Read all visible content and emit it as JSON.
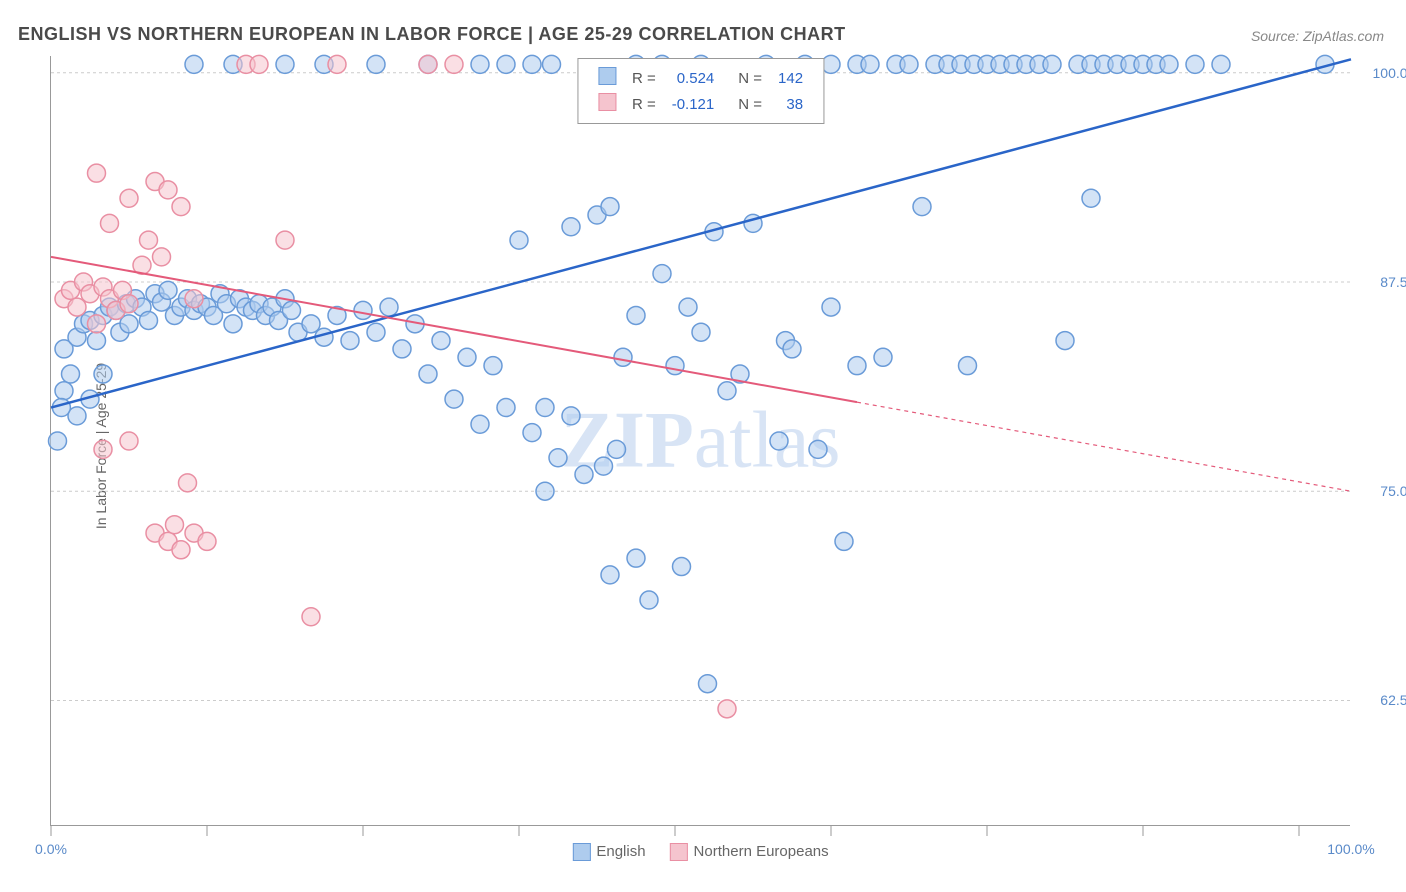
{
  "title": "ENGLISH VS NORTHERN EUROPEAN IN LABOR FORCE | AGE 25-29 CORRELATION CHART",
  "source": "Source: ZipAtlas.com",
  "y_axis_label": "In Labor Force | Age 25-29",
  "watermark": {
    "part1": "ZIP",
    "part2": "atlas"
  },
  "chart": {
    "type": "scatter",
    "xlim": [
      0,
      100
    ],
    "ylim": [
      55,
      101
    ],
    "y_ticks": [
      62.5,
      75.0,
      87.5,
      100.0
    ],
    "y_tick_labels": [
      "62.5%",
      "75.0%",
      "87.5%",
      "100.0%"
    ],
    "x_ticks": [
      0,
      12,
      24,
      36,
      48,
      60,
      72,
      84,
      96
    ],
    "x_tick_labels_show": [
      0,
      100
    ],
    "x_tick_label_values": [
      "0.0%",
      "100.0%"
    ],
    "grid_color": "#cccccc",
    "background_color": "#ffffff",
    "marker_radius": 9,
    "marker_stroke_width": 1.5,
    "series": [
      {
        "name": "English",
        "fill": "#aeccee",
        "fill_opacity": 0.55,
        "stroke": "#6a9bd8",
        "regression": {
          "x1": 0,
          "y1": 80.0,
          "x2": 100,
          "y2": 100.8,
          "solid_to_x": 100,
          "color": "#2a65c8",
          "width": 2.5
        },
        "R": "0.524",
        "N": "142",
        "points": [
          [
            1,
            83.5
          ],
          [
            2,
            84.2
          ],
          [
            2.5,
            85.0
          ],
          [
            3,
            85.2
          ],
          [
            3.5,
            84.0
          ],
          [
            4,
            85.5
          ],
          [
            4.5,
            86.0
          ],
          [
            5,
            85.8
          ],
          [
            5.3,
            84.5
          ],
          [
            5.8,
            86.2
          ],
          [
            6,
            85.0
          ],
          [
            6.5,
            86.5
          ],
          [
            7,
            86.0
          ],
          [
            7.5,
            85.2
          ],
          [
            8,
            86.8
          ],
          [
            8.5,
            86.3
          ],
          [
            9,
            87.0
          ],
          [
            9.5,
            85.5
          ],
          [
            10,
            86.0
          ],
          [
            10.5,
            86.5
          ],
          [
            11,
            85.8
          ],
          [
            11.5,
            86.2
          ],
          [
            12,
            86.0
          ],
          [
            12.5,
            85.5
          ],
          [
            13,
            86.8
          ],
          [
            13.5,
            86.2
          ],
          [
            14,
            85.0
          ],
          [
            14.5,
            86.5
          ],
          [
            15,
            86.0
          ],
          [
            15.5,
            85.8
          ],
          [
            16,
            86.2
          ],
          [
            16.5,
            85.5
          ],
          [
            17,
            86.0
          ],
          [
            17.5,
            85.2
          ],
          [
            18,
            86.5
          ],
          [
            18.5,
            85.8
          ],
          [
            19,
            84.5
          ],
          [
            20,
            85.0
          ],
          [
            21,
            84.2
          ],
          [
            22,
            85.5
          ],
          [
            23,
            84.0
          ],
          [
            24,
            85.8
          ],
          [
            25,
            84.5
          ],
          [
            26,
            86.0
          ],
          [
            27,
            83.5
          ],
          [
            28,
            85.0
          ],
          [
            29,
            82.0
          ],
          [
            30,
            84.0
          ],
          [
            31,
            80.5
          ],
          [
            32,
            83.0
          ],
          [
            33,
            79.0
          ],
          [
            34,
            82.5
          ],
          [
            35,
            80.0
          ],
          [
            36,
            90.0
          ],
          [
            37,
            78.5
          ],
          [
            38,
            75.0
          ],
          [
            38.5,
            100.5
          ],
          [
            38,
            80.0
          ],
          [
            39,
            77.0
          ],
          [
            40,
            79.5
          ],
          [
            40,
            90.8
          ],
          [
            41,
            76.0
          ],
          [
            42,
            91.5
          ],
          [
            42.5,
            76.5
          ],
          [
            43,
            92.0
          ],
          [
            43,
            70.0
          ],
          [
            43.5,
            77.5
          ],
          [
            44,
            83.0
          ],
          [
            45,
            85.5
          ],
          [
            45,
            71.0
          ],
          [
            45,
            100.5
          ],
          [
            46,
            68.5
          ],
          [
            47,
            88.0
          ],
          [
            47,
            100.5
          ],
          [
            48,
            82.5
          ],
          [
            48.5,
            70.5
          ],
          [
            49,
            86.0
          ],
          [
            50,
            100.5
          ],
          [
            50,
            84.5
          ],
          [
            50.5,
            63.5
          ],
          [
            51,
            90.5
          ],
          [
            52,
            81.0
          ],
          [
            53,
            82.0
          ],
          [
            54,
            91.0
          ],
          [
            55,
            100.5
          ],
          [
            56,
            78.0
          ],
          [
            56.5,
            84.0
          ],
          [
            57,
            83.5
          ],
          [
            58,
            100.5
          ],
          [
            59,
            77.5
          ],
          [
            60,
            86.0
          ],
          [
            60,
            100.5
          ],
          [
            61,
            72.0
          ],
          [
            62,
            82.5
          ],
          [
            62,
            100.5
          ],
          [
            63,
            100.5
          ],
          [
            64,
            83.0
          ],
          [
            65,
            100.5
          ],
          [
            66,
            100.5
          ],
          [
            67,
            92.0
          ],
          [
            68,
            100.5
          ],
          [
            69,
            100.5
          ],
          [
            70,
            100.5
          ],
          [
            70.5,
            82.5
          ],
          [
            71,
            100.5
          ],
          [
            72,
            100.5
          ],
          [
            73,
            100.5
          ],
          [
            74,
            100.5
          ],
          [
            75,
            100.5
          ],
          [
            76,
            100.5
          ],
          [
            77,
            100.5
          ],
          [
            78,
            84.0
          ],
          [
            79,
            100.5
          ],
          [
            80,
            92.5
          ],
          [
            80,
            100.5
          ],
          [
            81,
            100.5
          ],
          [
            82,
            100.5
          ],
          [
            83,
            100.5
          ],
          [
            84,
            100.5
          ],
          [
            85,
            100.5
          ],
          [
            86,
            100.5
          ],
          [
            88,
            100.5
          ],
          [
            90,
            100.5
          ],
          [
            98,
            100.5
          ],
          [
            2,
            79.5
          ],
          [
            3,
            80.5
          ],
          [
            4,
            82.0
          ],
          [
            1.5,
            82.0
          ],
          [
            1,
            81.0
          ],
          [
            0.8,
            80.0
          ],
          [
            0.5,
            78.0
          ],
          [
            11,
            100.5
          ],
          [
            14,
            100.5
          ],
          [
            18,
            100.5
          ],
          [
            21,
            100.5
          ],
          [
            25,
            100.5
          ],
          [
            29,
            100.5
          ],
          [
            33,
            100.5
          ],
          [
            35,
            100.5
          ],
          [
            37,
            100.5
          ]
        ]
      },
      {
        "name": "Northern Europeans",
        "fill": "#f5c4ce",
        "fill_opacity": 0.55,
        "stroke": "#e98fa3",
        "regression": {
          "x1": 0,
          "y1": 89.0,
          "x2": 100,
          "y2": 75.0,
          "solid_to_x": 62,
          "color": "#e45a7a",
          "width": 2
        },
        "R": "-0.121",
        "N": "38",
        "points": [
          [
            1,
            86.5
          ],
          [
            1.5,
            87.0
          ],
          [
            2,
            86.0
          ],
          [
            2.5,
            87.5
          ],
          [
            3,
            86.8
          ],
          [
            3.5,
            85.0
          ],
          [
            4,
            87.2
          ],
          [
            4.5,
            86.5
          ],
          [
            5,
            85.8
          ],
          [
            5.5,
            87.0
          ],
          [
            6,
            86.2
          ],
          [
            7,
            88.5
          ],
          [
            7.5,
            90.0
          ],
          [
            8,
            93.5
          ],
          [
            8.5,
            89.0
          ],
          [
            9,
            93.0
          ],
          [
            10,
            92.0
          ],
          [
            11,
            86.5
          ],
          [
            15,
            100.5
          ],
          [
            16,
            100.5
          ],
          [
            22,
            100.5
          ],
          [
            29,
            100.5
          ],
          [
            31,
            100.5
          ],
          [
            52,
            62.0
          ],
          [
            4,
            77.5
          ],
          [
            6,
            78.0
          ],
          [
            8,
            72.5
          ],
          [
            9,
            72.0
          ],
          [
            9.5,
            73.0
          ],
          [
            10,
            71.5
          ],
          [
            11,
            72.5
          ],
          [
            12,
            72.0
          ],
          [
            10.5,
            75.5
          ],
          [
            18,
            90.0
          ],
          [
            4.5,
            91.0
          ],
          [
            6,
            92.5
          ],
          [
            20,
            67.5
          ],
          [
            3.5,
            94.0
          ]
        ]
      }
    ]
  },
  "legend_top": {
    "rows": [
      {
        "swatch_fill": "#aeccee",
        "swatch_stroke": "#6a9bd8",
        "r_label": "R = ",
        "r_value": "0.524",
        "n_label": "N = ",
        "n_value": "142",
        "value_color": "#2a65c8"
      },
      {
        "swatch_fill": "#f5c4ce",
        "swatch_stroke": "#e98fa3",
        "r_label": "R = ",
        "r_value": "-0.121",
        "n_label": "N = ",
        "n_value": "38",
        "value_color": "#2a65c8"
      }
    ]
  },
  "legend_bottom": [
    {
      "swatch_fill": "#aeccee",
      "swatch_stroke": "#6a9bd8",
      "label": "English"
    },
    {
      "swatch_fill": "#f5c4ce",
      "swatch_stroke": "#e98fa3",
      "label": "Northern Europeans"
    }
  ]
}
